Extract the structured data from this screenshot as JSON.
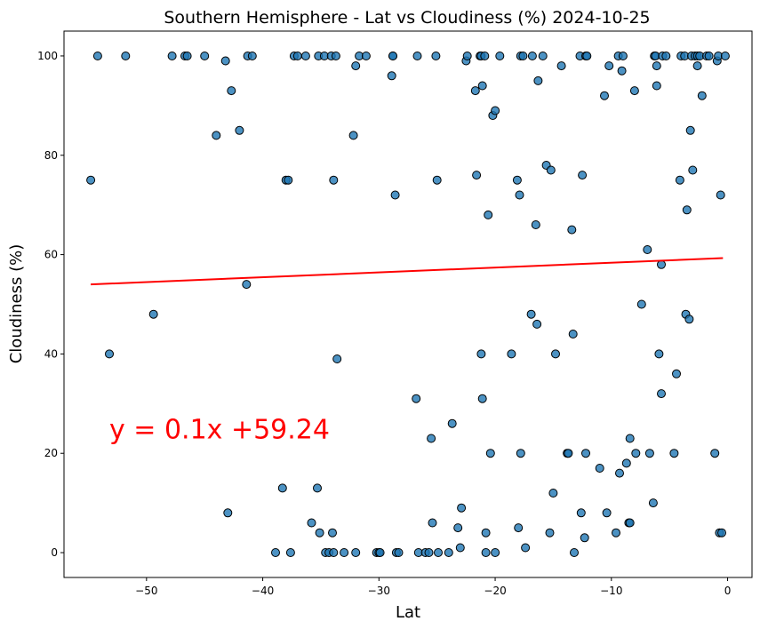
{
  "chart_data": {
    "type": "scatter",
    "title": "Southern Hemisphere - Lat vs Cloudiness (%) 2024-10-25",
    "xlabel": "Lat",
    "ylabel": "Cloudiness (%)",
    "xlim": [
      -57.1,
      2.1
    ],
    "ylim": [
      -5,
      105
    ],
    "xticks": [
      -50,
      -40,
      -30,
      -20,
      -10,
      0
    ],
    "xtick_labels": [
      "−50",
      "−40",
      "−30",
      "−20",
      "−10",
      "0"
    ],
    "yticks": [
      0,
      20,
      40,
      60,
      80,
      100
    ],
    "ytick_labels": [
      "0",
      "20",
      "40",
      "60",
      "80",
      "100"
    ],
    "grid": false,
    "point_color": "#1f77b4",
    "point_edge_color": "#000000",
    "regression": {
      "equation_text": "y = 0.1x +59.24",
      "x_range": [
        -54.8,
        -0.4
      ],
      "y_range": [
        54.0,
        59.3
      ],
      "label_at": [
        -53.2,
        23
      ],
      "color": "#ff0000"
    },
    "points": [
      [
        -54.8,
        75
      ],
      [
        -54.2,
        100
      ],
      [
        -53.2,
        40
      ],
      [
        -51.8,
        100
      ],
      [
        -49.4,
        48
      ],
      [
        -47.8,
        100
      ],
      [
        -46.7,
        100
      ],
      [
        -46.5,
        100
      ],
      [
        -45.0,
        100
      ],
      [
        -44.0,
        84
      ],
      [
        -43.2,
        99
      ],
      [
        -43.0,
        8
      ],
      [
        -42.7,
        93
      ],
      [
        -42.0,
        85
      ],
      [
        -41.4,
        54
      ],
      [
        -41.3,
        100
      ],
      [
        -40.9,
        100
      ],
      [
        -38.9,
        0
      ],
      [
        -38.3,
        13
      ],
      [
        -38.0,
        75
      ],
      [
        -37.8,
        75
      ],
      [
        -37.6,
        0
      ],
      [
        -37.3,
        100
      ],
      [
        -37.0,
        100
      ],
      [
        -36.3,
        100
      ],
      [
        -35.8,
        6
      ],
      [
        -35.3,
        13
      ],
      [
        -35.2,
        100
      ],
      [
        -35.1,
        4
      ],
      [
        -34.7,
        100
      ],
      [
        -34.6,
        0
      ],
      [
        -34.3,
        0
      ],
      [
        -34.1,
        100
      ],
      [
        -34.0,
        4
      ],
      [
        -33.9,
        75
      ],
      [
        -33.9,
        0
      ],
      [
        -33.7,
        100
      ],
      [
        -33.6,
        39
      ],
      [
        -33.0,
        0
      ],
      [
        -32.2,
        84
      ],
      [
        -32.0,
        98
      ],
      [
        -32.0,
        0
      ],
      [
        -31.7,
        100
      ],
      [
        -31.1,
        100
      ],
      [
        -30.2,
        0
      ],
      [
        -30.0,
        0
      ],
      [
        -29.9,
        0
      ],
      [
        -28.9,
        96
      ],
      [
        -28.8,
        100
      ],
      [
        -28.8,
        100
      ],
      [
        -28.6,
        72
      ],
      [
        -28.5,
        0
      ],
      [
        -28.3,
        0
      ],
      [
        -26.8,
        31
      ],
      [
        -26.7,
        100
      ],
      [
        -26.6,
        0
      ],
      [
        -26.0,
        0
      ],
      [
        -25.7,
        0
      ],
      [
        -25.5,
        23
      ],
      [
        -25.4,
        6
      ],
      [
        -25.1,
        100
      ],
      [
        -25.0,
        75
      ],
      [
        -24.9,
        0
      ],
      [
        -24.0,
        0
      ],
      [
        -23.7,
        26
      ],
      [
        -23.2,
        5
      ],
      [
        -23.0,
        1
      ],
      [
        -22.9,
        9
      ],
      [
        -22.5,
        99
      ],
      [
        -22.4,
        100
      ],
      [
        -21.7,
        93
      ],
      [
        -21.6,
        76
      ],
      [
        -21.3,
        100
      ],
      [
        -21.2,
        100
      ],
      [
        -21.2,
        40
      ],
      [
        -21.1,
        94
      ],
      [
        -21.1,
        31
      ],
      [
        -20.9,
        100
      ],
      [
        -20.8,
        4
      ],
      [
        -20.8,
        0
      ],
      [
        -20.6,
        68
      ],
      [
        -20.4,
        20
      ],
      [
        -20.2,
        88
      ],
      [
        -20.0,
        89
      ],
      [
        -20.0,
        0
      ],
      [
        -19.6,
        100
      ],
      [
        -18.6,
        40
      ],
      [
        -18.1,
        75
      ],
      [
        -18.0,
        5
      ],
      [
        -17.9,
        72
      ],
      [
        -17.8,
        100
      ],
      [
        -17.8,
        20
      ],
      [
        -17.6,
        100
      ],
      [
        -17.4,
        1
      ],
      [
        -16.9,
        48
      ],
      [
        -16.8,
        100
      ],
      [
        -16.5,
        66
      ],
      [
        -16.4,
        46
      ],
      [
        -16.3,
        95
      ],
      [
        -15.9,
        100
      ],
      [
        -15.6,
        78
      ],
      [
        -15.3,
        4
      ],
      [
        -15.2,
        77
      ],
      [
        -15.0,
        12
      ],
      [
        -14.8,
        40
      ],
      [
        -14.3,
        98
      ],
      [
        -13.8,
        20
      ],
      [
        -13.7,
        20
      ],
      [
        -13.4,
        65
      ],
      [
        -13.3,
        44
      ],
      [
        -13.2,
        0
      ],
      [
        -12.7,
        100
      ],
      [
        -12.6,
        8
      ],
      [
        -12.5,
        76
      ],
      [
        -12.3,
        3
      ],
      [
        -12.2,
        20
      ],
      [
        -12.2,
        100
      ],
      [
        -12.1,
        100
      ],
      [
        -11.0,
        17
      ],
      [
        -10.6,
        92
      ],
      [
        -10.4,
        8
      ],
      [
        -10.2,
        98
      ],
      [
        -9.6,
        4
      ],
      [
        -9.4,
        100
      ],
      [
        -9.3,
        16
      ],
      [
        -9.1,
        97
      ],
      [
        -9.0,
        100
      ],
      [
        -8.7,
        18
      ],
      [
        -8.5,
        6
      ],
      [
        -8.4,
        23
      ],
      [
        -8.4,
        6
      ],
      [
        -8.0,
        93
      ],
      [
        -7.9,
        20
      ],
      [
        -7.4,
        50
      ],
      [
        -6.9,
        61
      ],
      [
        -6.7,
        20
      ],
      [
        -6.4,
        10
      ],
      [
        -6.3,
        100
      ],
      [
        -6.2,
        100
      ],
      [
        -6.1,
        94
      ],
      [
        -6.1,
        98
      ],
      [
        -5.9,
        40
      ],
      [
        -5.7,
        58
      ],
      [
        -5.7,
        32
      ],
      [
        -5.6,
        100
      ],
      [
        -5.3,
        100
      ],
      [
        -4.6,
        20
      ],
      [
        -4.4,
        36
      ],
      [
        -4.1,
        75
      ],
      [
        -4.0,
        100
      ],
      [
        -3.7,
        100
      ],
      [
        -3.6,
        48
      ],
      [
        -3.5,
        69
      ],
      [
        -3.3,
        47
      ],
      [
        -3.2,
        85
      ],
      [
        -3.1,
        100
      ],
      [
        -3.0,
        77
      ],
      [
        -2.8,
        100
      ],
      [
        -2.6,
        100
      ],
      [
        -2.6,
        98
      ],
      [
        -2.4,
        100
      ],
      [
        -2.2,
        92
      ],
      [
        -1.8,
        100
      ],
      [
        -1.6,
        100
      ],
      [
        -1.1,
        20
      ],
      [
        -0.9,
        99
      ],
      [
        -0.8,
        100
      ],
      [
        -0.7,
        4
      ],
      [
        -0.6,
        72
      ],
      [
        -0.5,
        4
      ],
      [
        -0.2,
        100
      ]
    ]
  }
}
